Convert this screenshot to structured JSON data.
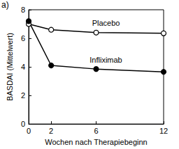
{
  "chart_data": {
    "type": "line",
    "annotations": [
      "a)"
    ],
    "x_label": "Wochen nach Therapiebeginn",
    "y_label": "BASDAI (Mittelwert)",
    "x": [
      0,
      2,
      6,
      12
    ],
    "series": [
      {
        "name": "Placebo",
        "color": "#000000",
        "marker": "open circle",
        "values": [
          7.0,
          6.6,
          6.4,
          6.35
        ]
      },
      {
        "name": "Infliximab",
        "color": "#000000",
        "marker": "filled circle",
        "values": [
          7.2,
          4.1,
          3.85,
          3.65
        ]
      }
    ],
    "xlim": [
      0,
      12
    ],
    "xticks": [
      0,
      2,
      6,
      12
    ],
    "ylim": [
      0,
      8
    ],
    "yticks": [
      0,
      2,
      4,
      6,
      8
    ],
    "grid": false
  }
}
